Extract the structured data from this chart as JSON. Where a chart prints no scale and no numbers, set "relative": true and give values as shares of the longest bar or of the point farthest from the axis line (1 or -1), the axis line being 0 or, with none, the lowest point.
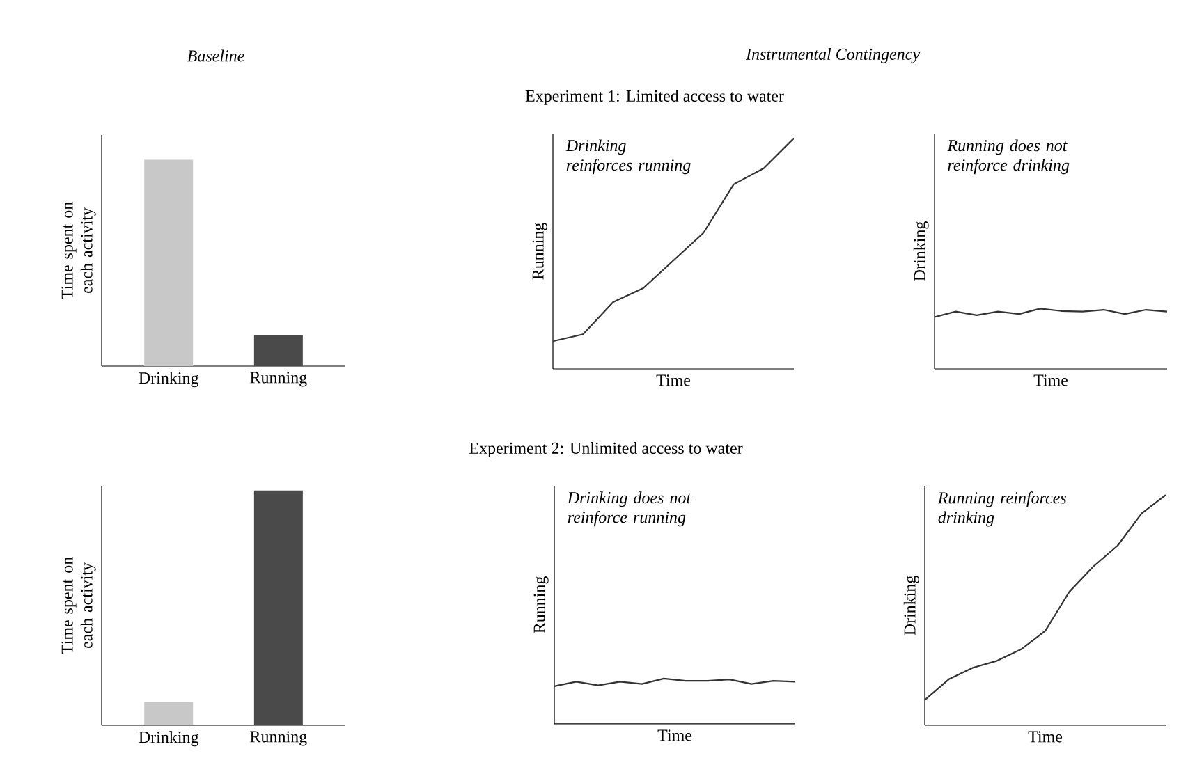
{
  "chart_data": [
    {
      "type": "bar",
      "title": "Baseline",
      "ylabel": "Time spent on each activity",
      "relative": true,
      "categories": [
        "Drinking",
        "Running"
      ],
      "values": [
        1,
        0.15
      ],
      "colors": [
        "#c8c8c8",
        "#4a4a4a"
      ]
    },
    {
      "type": "line",
      "title": "Instrumental Contingency",
      "subtitle": "Experiment 1: Limited access to water",
      "xlabel": "Time",
      "ylabel": "Running",
      "relative": true,
      "annotations": [
        "Drinking reinforces running"
      ],
      "categories": [
        null,
        null,
        null,
        null,
        null,
        null,
        null,
        null,
        null
      ],
      "series": [
        {
          "color": "#333333",
          "values": [
            0.12,
            0.15,
            0.29,
            0.35,
            0.47,
            0.59,
            0.8,
            0.87,
            1
          ]
        }
      ]
    },
    {
      "type": "line",
      "xlabel": "Time",
      "ylabel": "Drinking",
      "relative": true,
      "annotations": [
        "Running does not reinforce drinking"
      ],
      "categories": [
        null,
        null,
        null,
        null,
        null,
        null,
        null,
        null,
        null,
        null,
        null,
        null
      ],
      "series": [
        {
          "color": "#333333",
          "values": [
            0.86,
            0.95,
            0.89,
            0.95,
            0.91,
            1,
            0.96,
            0.95,
            0.98,
            0.91,
            0.98,
            0.95
          ]
        }
      ]
    },
    {
      "type": "bar",
      "ylabel": "Time spent on each activity",
      "relative": true,
      "categories": [
        "Drinking",
        "Running"
      ],
      "values": [
        0.1,
        1
      ],
      "colors": [
        "#c8c8c8",
        "#4a4a4a"
      ]
    },
    {
      "type": "line",
      "subtitle": "Experiment 2: Unlimited access to water",
      "xlabel": "Time",
      "ylabel": "Running",
      "relative": true,
      "annotations": [
        "Drinking does not reinforce running"
      ],
      "categories": [
        null,
        null,
        null,
        null,
        null,
        null,
        null,
        null,
        null,
        null,
        null,
        null
      ],
      "series": [
        {
          "color": "#333333",
          "values": [
            0.83,
            0.93,
            0.85,
            0.93,
            0.88,
            1,
            0.95,
            0.95,
            0.98,
            0.88,
            0.95,
            0.93
          ]
        }
      ]
    },
    {
      "type": "line",
      "xlabel": "Time",
      "ylabel": "Drinking",
      "relative": true,
      "annotations": [
        "Running reinforces drinking"
      ],
      "categories": [
        null,
        null,
        null,
        null,
        null,
        null,
        null,
        null,
        null,
        null,
        null
      ],
      "series": [
        {
          "color": "#333333",
          "values": [
            0.11,
            0.2,
            0.25,
            0.28,
            0.33,
            0.41,
            0.58,
            0.69,
            0.78,
            0.92,
            1
          ]
        }
      ]
    }
  ]
}
